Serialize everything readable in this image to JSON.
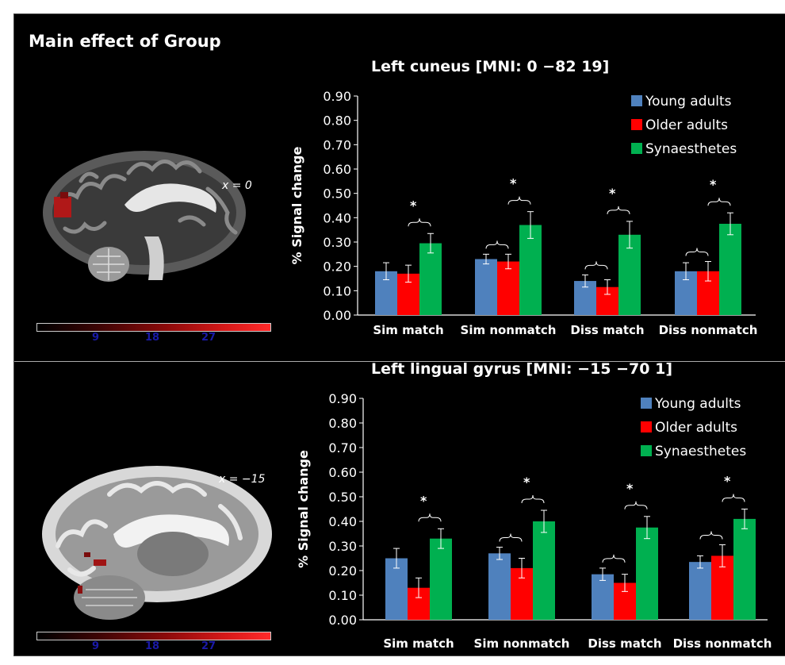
{
  "page_title": "Main effect of Group",
  "colors": {
    "young": "#4f81bd",
    "older": "#ff0000",
    "syn": "#00b050",
    "background": "#000000",
    "text": "#ffffff"
  },
  "panels": [
    {
      "brain_coord": "x = 0",
      "colorbar_ticks": [
        "9",
        "18",
        "27"
      ]
    },
    {
      "brain_coord": "x = −15",
      "colorbar_ticks": [
        "9",
        "18",
        "27"
      ]
    }
  ],
  "chart_data": [
    {
      "type": "bar",
      "title": "Left cuneus [MNI: 0 −82 19]",
      "ylabel": "% Signal change",
      "ylim": [
        0,
        0.9
      ],
      "yticks": [
        "0.00",
        "0.10",
        "0.20",
        "0.30",
        "0.40",
        "0.50",
        "0.60",
        "0.70",
        "0.80",
        "0.90"
      ],
      "categories": [
        "Sim match",
        "Sim nonmatch",
        "Diss match",
        "Diss nonmatch"
      ],
      "legend_position": "top-right",
      "series": [
        {
          "name": "Young adults",
          "values": [
            0.18,
            0.23,
            0.14,
            0.18
          ],
          "errors": [
            0.035,
            0.02,
            0.025,
            0.035
          ]
        },
        {
          "name": "Older adults",
          "values": [
            0.17,
            0.22,
            0.115,
            0.18
          ],
          "errors": [
            0.035,
            0.03,
            0.03,
            0.04
          ]
        },
        {
          "name": "Synaesthetes",
          "values": [
            0.295,
            0.37,
            0.33,
            0.375
          ],
          "errors": [
            0.04,
            0.055,
            0.055,
            0.045
          ]
        }
      ],
      "significance_marker": "*"
    },
    {
      "type": "bar",
      "title": "Left lingual gyrus [MNI: −15 −70 1]",
      "ylabel": "% Signal change",
      "ylim": [
        0,
        0.9
      ],
      "yticks": [
        "0.00",
        "0.10",
        "0.20",
        "0.30",
        "0.40",
        "0.50",
        "0.60",
        "0.70",
        "0.80",
        "0.90"
      ],
      "categories": [
        "Sim match",
        "Sim nonmatch",
        "Diss match",
        "Diss nonmatch"
      ],
      "legend_position": "top-right",
      "series": [
        {
          "name": "Young adults",
          "values": [
            0.25,
            0.27,
            0.185,
            0.235
          ],
          "errors": [
            0.04,
            0.025,
            0.025,
            0.025
          ]
        },
        {
          "name": "Older adults",
          "values": [
            0.13,
            0.21,
            0.15,
            0.26
          ],
          "errors": [
            0.04,
            0.04,
            0.035,
            0.045
          ]
        },
        {
          "name": "Synaesthetes",
          "values": [
            0.33,
            0.4,
            0.375,
            0.41
          ],
          "errors": [
            0.04,
            0.045,
            0.045,
            0.04
          ]
        }
      ],
      "significance_marker": "*"
    }
  ]
}
